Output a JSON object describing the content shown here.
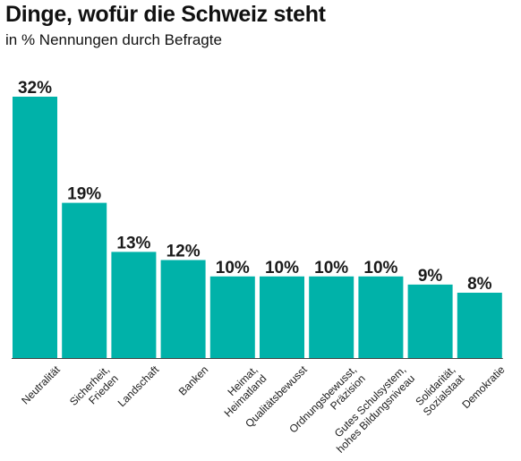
{
  "chart_data": {
    "type": "bar",
    "title": "Dinge, wofür die Schweiz steht",
    "subtitle": "in % Nennungen durch Befragte",
    "unit": "%",
    "categories": [
      [
        "Neutralität"
      ],
      [
        "Sicherheit,",
        "Frieden"
      ],
      [
        "Landschaft"
      ],
      [
        "Banken"
      ],
      [
        "Heimat,",
        "Heimatland"
      ],
      [
        "Qualitätsbewusst"
      ],
      [
        "Ordnungsbewusst,",
        "Präzision"
      ],
      [
        "Gutes Schulsystem,",
        "hohes Bildungsniveau"
      ],
      [
        "Solidarität,",
        "Sozialstaat"
      ],
      [
        "Demokratie"
      ]
    ],
    "values": [
      32,
      19,
      13,
      12,
      10,
      10,
      10,
      10,
      9,
      8
    ],
    "value_labels": [
      "32%",
      "19%",
      "13%",
      "12%",
      "10%",
      "10%",
      "10%",
      "10%",
      "9%",
      "8%"
    ],
    "ylim": [
      0,
      32
    ],
    "grid": false,
    "legend": "none",
    "bar_color": "#00b2a9",
    "baseline_color": "#444444"
  }
}
